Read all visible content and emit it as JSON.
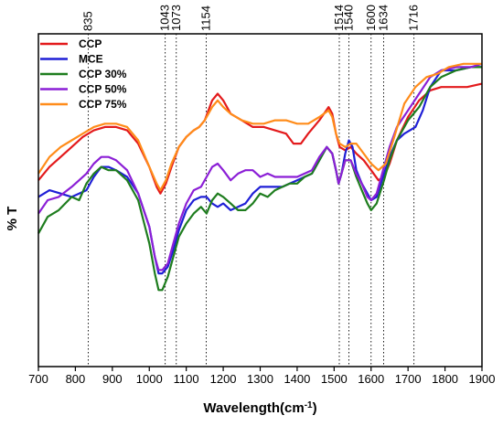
{
  "chart_data": {
    "type": "line",
    "xlabel_main": "Wavelength(cm",
    "xlabel_sup": "-1",
    "xlabel_end": ")",
    "ylabel": "% T",
    "xlim": [
      700,
      1900
    ],
    "ylim": [
      0,
      100
    ],
    "x_ticks": [
      700,
      800,
      900,
      1000,
      1100,
      1200,
      1300,
      1400,
      1500,
      1600,
      1700,
      1800,
      1900
    ],
    "y_ticks_shown": false,
    "grid": false,
    "legend_position": "top-left",
    "peak_markers": [
      835,
      1043,
      1073,
      1154,
      1514,
      1540,
      1600,
      1634,
      1716
    ],
    "series": [
      {
        "name": "CCP",
        "color": "#e31a1c",
        "points": [
          [
            700,
            56
          ],
          [
            730,
            60
          ],
          [
            760,
            63
          ],
          [
            790,
            66
          ],
          [
            820,
            69
          ],
          [
            850,
            71
          ],
          [
            880,
            72
          ],
          [
            910,
            72
          ],
          [
            940,
            71
          ],
          [
            970,
            67
          ],
          [
            1000,
            60
          ],
          [
            1020,
            54
          ],
          [
            1030,
            52
          ],
          [
            1045,
            55
          ],
          [
            1060,
            60
          ],
          [
            1080,
            66
          ],
          [
            1100,
            69
          ],
          [
            1120,
            71
          ],
          [
            1135,
            72
          ],
          [
            1150,
            74
          ],
          [
            1170,
            80
          ],
          [
            1185,
            82
          ],
          [
            1200,
            80
          ],
          [
            1220,
            76
          ],
          [
            1250,
            74
          ],
          [
            1280,
            72
          ],
          [
            1310,
            72
          ],
          [
            1340,
            71
          ],
          [
            1370,
            70
          ],
          [
            1390,
            67
          ],
          [
            1410,
            67
          ],
          [
            1430,
            70
          ],
          [
            1460,
            74
          ],
          [
            1485,
            78
          ],
          [
            1495,
            76
          ],
          [
            1505,
            70
          ],
          [
            1515,
            66
          ],
          [
            1530,
            65
          ],
          [
            1545,
            66
          ],
          [
            1560,
            64
          ],
          [
            1580,
            62
          ],
          [
            1600,
            59
          ],
          [
            1620,
            56
          ],
          [
            1635,
            57
          ],
          [
            1650,
            61
          ],
          [
            1670,
            68
          ],
          [
            1700,
            75
          ],
          [
            1730,
            80
          ],
          [
            1760,
            83
          ],
          [
            1790,
            84
          ],
          [
            1830,
            84
          ],
          [
            1860,
            84
          ],
          [
            1900,
            85
          ]
        ]
      },
      {
        "name": "MCE",
        "color": "#1f1fd6",
        "points": [
          [
            700,
            51
          ],
          [
            730,
            53
          ],
          [
            760,
            52
          ],
          [
            790,
            51
          ],
          [
            810,
            52
          ],
          [
            830,
            53
          ],
          [
            850,
            57
          ],
          [
            870,
            60
          ],
          [
            890,
            60
          ],
          [
            910,
            59
          ],
          [
            940,
            57
          ],
          [
            970,
            52
          ],
          [
            1000,
            42
          ],
          [
            1015,
            33
          ],
          [
            1025,
            28
          ],
          [
            1035,
            28
          ],
          [
            1050,
            30
          ],
          [
            1065,
            35
          ],
          [
            1080,
            41
          ],
          [
            1100,
            47
          ],
          [
            1120,
            50
          ],
          [
            1140,
            51
          ],
          [
            1155,
            51
          ],
          [
            1170,
            49
          ],
          [
            1185,
            48
          ],
          [
            1200,
            49
          ],
          [
            1220,
            47
          ],
          [
            1240,
            48
          ],
          [
            1260,
            49
          ],
          [
            1280,
            52
          ],
          [
            1300,
            54
          ],
          [
            1320,
            54
          ],
          [
            1340,
            54
          ],
          [
            1360,
            54
          ],
          [
            1380,
            55
          ],
          [
            1400,
            56
          ],
          [
            1420,
            57
          ],
          [
            1440,
            58
          ],
          [
            1460,
            62
          ],
          [
            1480,
            66
          ],
          [
            1495,
            64
          ],
          [
            1505,
            59
          ],
          [
            1512,
            55
          ],
          [
            1520,
            58
          ],
          [
            1530,
            64
          ],
          [
            1540,
            68
          ],
          [
            1550,
            66
          ],
          [
            1560,
            59
          ],
          [
            1575,
            55
          ],
          [
            1590,
            52
          ],
          [
            1600,
            50
          ],
          [
            1615,
            51
          ],
          [
            1635,
            58
          ],
          [
            1650,
            63
          ],
          [
            1670,
            68
          ],
          [
            1690,
            70
          ],
          [
            1705,
            71
          ],
          [
            1720,
            72
          ],
          [
            1740,
            77
          ],
          [
            1760,
            84
          ],
          [
            1790,
            89
          ],
          [
            1830,
            89
          ],
          [
            1870,
            90
          ],
          [
            1900,
            90
          ]
        ]
      },
      {
        "name": "CCP 30%",
        "color": "#1e7d1e",
        "points": [
          [
            700,
            40
          ],
          [
            725,
            45
          ],
          [
            755,
            47
          ],
          [
            790,
            51
          ],
          [
            810,
            50
          ],
          [
            830,
            55
          ],
          [
            850,
            58
          ],
          [
            870,
            60
          ],
          [
            890,
            59
          ],
          [
            910,
            59
          ],
          [
            940,
            56
          ],
          [
            970,
            50
          ],
          [
            1000,
            37
          ],
          [
            1015,
            28
          ],
          [
            1025,
            23
          ],
          [
            1035,
            23
          ],
          [
            1050,
            27
          ],
          [
            1065,
            33
          ],
          [
            1080,
            39
          ],
          [
            1100,
            43
          ],
          [
            1120,
            46
          ],
          [
            1140,
            48
          ],
          [
            1155,
            46
          ],
          [
            1170,
            50
          ],
          [
            1185,
            52
          ],
          [
            1200,
            51
          ],
          [
            1220,
            49
          ],
          [
            1240,
            47
          ],
          [
            1260,
            47
          ],
          [
            1280,
            49
          ],
          [
            1300,
            52
          ],
          [
            1320,
            51
          ],
          [
            1340,
            53
          ],
          [
            1360,
            54
          ],
          [
            1380,
            55
          ],
          [
            1400,
            55
          ],
          [
            1420,
            57
          ],
          [
            1440,
            58
          ],
          [
            1460,
            62
          ],
          [
            1480,
            66
          ],
          [
            1495,
            64
          ],
          [
            1505,
            59
          ],
          [
            1512,
            55
          ],
          [
            1520,
            58
          ],
          [
            1530,
            62
          ],
          [
            1545,
            62
          ],
          [
            1560,
            57
          ],
          [
            1575,
            53
          ],
          [
            1590,
            49
          ],
          [
            1600,
            47
          ],
          [
            1615,
            49
          ],
          [
            1635,
            56
          ],
          [
            1650,
            62
          ],
          [
            1670,
            68
          ],
          [
            1700,
            74
          ],
          [
            1730,
            78
          ],
          [
            1760,
            84
          ],
          [
            1790,
            87
          ],
          [
            1830,
            89
          ],
          [
            1870,
            90
          ],
          [
            1900,
            90
          ]
        ]
      },
      {
        "name": "CCP 50%",
        "color": "#8b1fd6",
        "points": [
          [
            700,
            46
          ],
          [
            725,
            50
          ],
          [
            755,
            51
          ],
          [
            790,
            54
          ],
          [
            810,
            56
          ],
          [
            830,
            58
          ],
          [
            850,
            61
          ],
          [
            870,
            63
          ],
          [
            890,
            63
          ],
          [
            910,
            62
          ],
          [
            940,
            59
          ],
          [
            970,
            52
          ],
          [
            1000,
            42
          ],
          [
            1015,
            33
          ],
          [
            1025,
            29
          ],
          [
            1035,
            29
          ],
          [
            1050,
            31
          ],
          [
            1065,
            37
          ],
          [
            1080,
            43
          ],
          [
            1100,
            49
          ],
          [
            1120,
            53
          ],
          [
            1140,
            54
          ],
          [
            1155,
            57
          ],
          [
            1170,
            60
          ],
          [
            1185,
            61
          ],
          [
            1200,
            59
          ],
          [
            1220,
            56
          ],
          [
            1240,
            58
          ],
          [
            1260,
            59
          ],
          [
            1280,
            59
          ],
          [
            1300,
            57
          ],
          [
            1320,
            58
          ],
          [
            1340,
            57
          ],
          [
            1360,
            57
          ],
          [
            1380,
            57
          ],
          [
            1400,
            57
          ],
          [
            1420,
            58
          ],
          [
            1440,
            59
          ],
          [
            1460,
            63
          ],
          [
            1480,
            66
          ],
          [
            1495,
            64
          ],
          [
            1505,
            59
          ],
          [
            1512,
            55
          ],
          [
            1520,
            58
          ],
          [
            1530,
            62
          ],
          [
            1545,
            62
          ],
          [
            1560,
            58
          ],
          [
            1575,
            55
          ],
          [
            1590,
            51
          ],
          [
            1600,
            50
          ],
          [
            1615,
            52
          ],
          [
            1635,
            60
          ],
          [
            1650,
            66
          ],
          [
            1670,
            72
          ],
          [
            1700,
            77
          ],
          [
            1730,
            82
          ],
          [
            1760,
            87
          ],
          [
            1790,
            89
          ],
          [
            1830,
            90
          ],
          [
            1870,
            90
          ],
          [
            1900,
            91
          ]
        ]
      },
      {
        "name": "CCP 75%",
        "color": "#ff8c1a",
        "points": [
          [
            700,
            58
          ],
          [
            730,
            63
          ],
          [
            760,
            66
          ],
          [
            790,
            68
          ],
          [
            820,
            70
          ],
          [
            850,
            72
          ],
          [
            880,
            73
          ],
          [
            910,
            73
          ],
          [
            940,
            72
          ],
          [
            970,
            68
          ],
          [
            1000,
            60
          ],
          [
            1020,
            55
          ],
          [
            1030,
            53
          ],
          [
            1045,
            56
          ],
          [
            1060,
            61
          ],
          [
            1080,
            66
          ],
          [
            1100,
            69
          ],
          [
            1120,
            71
          ],
          [
            1135,
            72
          ],
          [
            1150,
            74
          ],
          [
            1170,
            78
          ],
          [
            1185,
            80
          ],
          [
            1200,
            78
          ],
          [
            1220,
            76
          ],
          [
            1250,
            74
          ],
          [
            1280,
            73
          ],
          [
            1310,
            73
          ],
          [
            1340,
            74
          ],
          [
            1370,
            74
          ],
          [
            1400,
            73
          ],
          [
            1430,
            73
          ],
          [
            1460,
            75
          ],
          [
            1485,
            77
          ],
          [
            1495,
            75
          ],
          [
            1505,
            70
          ],
          [
            1515,
            67
          ],
          [
            1530,
            66
          ],
          [
            1545,
            67
          ],
          [
            1560,
            67
          ],
          [
            1580,
            64
          ],
          [
            1600,
            61
          ],
          [
            1620,
            59
          ],
          [
            1640,
            61
          ],
          [
            1660,
            68
          ],
          [
            1690,
            79
          ],
          [
            1720,
            84
          ],
          [
            1750,
            87
          ],
          [
            1780,
            88
          ],
          [
            1810,
            90
          ],
          [
            1850,
            91
          ],
          [
            1900,
            91
          ]
        ]
      }
    ]
  }
}
